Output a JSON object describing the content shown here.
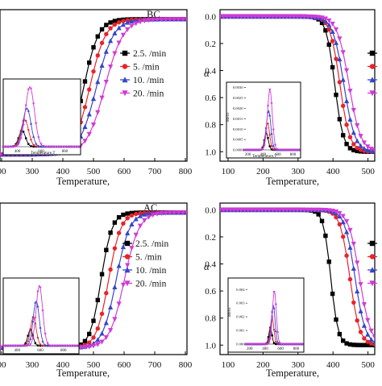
{
  "colors": {
    "black": "#000000",
    "red": "#e8232a",
    "blue": "#3646c8",
    "magenta": "#d13ad6"
  },
  "chart_data": [
    {
      "type": "line",
      "corner_label": "BC",
      "xlabel": "Temperature,",
      "ylabel": "",
      "xlim": [
        180,
        800
      ],
      "ylim": [
        1.07,
        -0.05
      ],
      "x_ticks": [
        "00",
        "300",
        "400",
        "500",
        "600",
        "700",
        "800"
      ],
      "y_ticks": [],
      "legend": {
        "placement": "middle-right",
        "entries": [
          "2.5.  /min",
          "5.  /min",
          "10.  /min",
          "20.  /min"
        ]
      },
      "series": [
        {
          "name": "2.5.  /min",
          "color": "black",
          "marker": "square",
          "midpoint": 458,
          "width": 24
        },
        {
          "name": "5.  /min",
          "color": "red",
          "marker": "circle",
          "midpoint": 478,
          "width": 26
        },
        {
          "name": "10.  /min",
          "color": "blue",
          "marker": "triangle-up",
          "midpoint": 500,
          "width": 28
        },
        {
          "name": "20.  /min",
          "color": "magenta",
          "marker": "triangle-down",
          "midpoint": 528,
          "width": 30
        }
      ],
      "inset": {
        "xlabel": "Temperature,T",
        "ylabel": "",
        "x_ticks": [
          "0",
          "400",
          "600",
          "800"
        ],
        "y_ticks": [],
        "xlim": [
          280,
          920
        ],
        "ymax": 1.0,
        "peaks": [
          {
            "center": 440,
            "sd": 28,
            "height": 0.25
          },
          {
            "center": 462,
            "sd": 32,
            "height": 0.42
          },
          {
            "center": 480,
            "sd": 34,
            "height": 0.6
          },
          {
            "center": 505,
            "sd": 38,
            "height": 0.93
          }
        ]
      }
    },
    {
      "type": "line",
      "corner_label": "",
      "xlabel": "Temperature,",
      "ylabel": "α",
      "xlim": [
        60,
        570
      ],
      "ylim": [
        -0.05,
        1.07
      ],
      "x_ticks": [
        "100",
        "200",
        "300",
        "400",
        "500"
      ],
      "y_ticks": [
        "0.0",
        "0.2",
        "0.4",
        "0.6",
        "0.8",
        "1.0"
      ],
      "legend": {
        "placement": "middle-right",
        "entries": []
      },
      "series": [
        {
          "name": "",
          "color": "black",
          "marker": "square",
          "midpoint": 438,
          "width": 14
        },
        {
          "name": "",
          "color": "red",
          "marker": "circle",
          "midpoint": 455,
          "width": 16
        },
        {
          "name": "",
          "color": "blue",
          "marker": "triangle-up",
          "midpoint": 468,
          "width": 18
        },
        {
          "name": "",
          "color": "magenta",
          "marker": "triangle-down",
          "midpoint": 485,
          "width": 19
        }
      ],
      "inset": {
        "xlabel": "Temperature,T",
        "ylabel": "dα/dT",
        "x_ticks": [
          "200",
          "400",
          "600",
          "800"
        ],
        "y_ticks": [
          "0.0000",
          "0.0005",
          "0.0010",
          "0.0015",
          "0.0020",
          "0.0025",
          "0.0030"
        ],
        "xlim": [
          150,
          880
        ],
        "ymax": 0.0031,
        "peaks": [
          {
            "center": 445,
            "sd": 26,
            "height": 0.0008
          },
          {
            "center": 460,
            "sd": 28,
            "height": 0.0013
          },
          {
            "center": 475,
            "sd": 30,
            "height": 0.0019
          },
          {
            "center": 492,
            "sd": 32,
            "height": 0.0029
          }
        ]
      }
    },
    {
      "type": "line",
      "corner_label": "AC",
      "xlabel": "Temperature,",
      "ylabel": "",
      "xlim": [
        180,
        800
      ],
      "ylim": [
        1.07,
        -0.05
      ],
      "x_ticks": [
        "00",
        "300",
        "400",
        "500",
        "600",
        "700",
        "800"
      ],
      "y_ticks": [],
      "legend": {
        "placement": "middle-right",
        "entries": [
          "2.5.  /min",
          "5.  /min",
          "10.  /min",
          "20.  /min"
        ]
      },
      "series": [
        {
          "name": "2.5.  /min",
          "color": "black",
          "marker": "square",
          "midpoint": 515,
          "width": 18
        },
        {
          "name": "5.  /min",
          "color": "red",
          "marker": "circle",
          "midpoint": 540,
          "width": 20
        },
        {
          "name": "10.  /min",
          "color": "blue",
          "marker": "triangle-up",
          "midpoint": 565,
          "width": 22
        },
        {
          "name": "20.  /min",
          "color": "magenta",
          "marker": "triangle-down",
          "midpoint": 592,
          "width": 24
        }
      ],
      "inset": {
        "xlabel": "",
        "ylabel": "",
        "x_ticks": [
          "400",
          "600",
          "800"
        ],
        "y_ticks": [],
        "xlim": [
          280,
          920
        ],
        "ymax": 1.0,
        "peaks": [
          {
            "center": 515,
            "sd": 22,
            "height": 0.25
          },
          {
            "center": 540,
            "sd": 24,
            "height": 0.45
          },
          {
            "center": 565,
            "sd": 26,
            "height": 0.7
          },
          {
            "center": 592,
            "sd": 28,
            "height": 0.94
          }
        ]
      }
    },
    {
      "type": "line",
      "corner_label": "",
      "xlabel": "Temperature,",
      "ylabel": "α",
      "xlim": [
        60,
        570
      ],
      "ylim": [
        -0.05,
        1.07
      ],
      "x_ticks": [
        "100",
        "200",
        "300",
        "400",
        "500"
      ],
      "y_ticks": [
        "0.0",
        "0.2",
        "0.4",
        "0.6",
        "0.8",
        "1.0"
      ],
      "legend": {
        "placement": "middle-right",
        "entries": []
      },
      "series": [
        {
          "name": "",
          "color": "black",
          "marker": "square",
          "midpoint": 425,
          "width": 12
        },
        {
          "name": "",
          "color": "red",
          "marker": "circle",
          "midpoint": 488,
          "width": 16
        },
        {
          "name": "",
          "color": "blue",
          "marker": "triangle-up",
          "midpoint": 505,
          "width": 17
        },
        {
          "name": "",
          "color": "magenta",
          "marker": "triangle-down",
          "midpoint": 520,
          "width": 18
        }
      ],
      "inset": {
        "xlabel": "",
        "ylabel": "dα/dT",
        "x_ticks": [
          "200",
          "400",
          "600",
          "800"
        ],
        "y_ticks": [
          "0.000",
          "0.001",
          "0.002",
          "0.003",
          "0.004"
        ],
        "xlim": [
          150,
          880
        ],
        "ymax": 0.0046,
        "peaks": [
          {
            "center": 468,
            "sd": 20,
            "height": 0.0012
          },
          {
            "center": 490,
            "sd": 22,
            "height": 0.002
          },
          {
            "center": 505,
            "sd": 23,
            "height": 0.0029
          },
          {
            "center": 520,
            "sd": 25,
            "height": 0.0039
          }
        ]
      }
    }
  ]
}
